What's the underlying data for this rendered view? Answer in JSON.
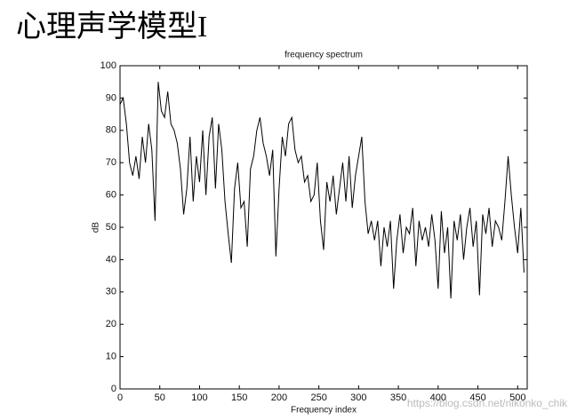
{
  "heading": "心理声学模型I",
  "watermark": "https://blog.csdn.net/nikonko_chik",
  "chart_data": {
    "type": "line",
    "title": "frequency spectrum",
    "x_label": "Frequency index",
    "y_label": "dB",
    "color": "#000000",
    "xlim": [
      0,
      512
    ],
    "ylim": [
      0,
      100
    ],
    "xticks": [
      0,
      50,
      100,
      150,
      200,
      250,
      300,
      350,
      400,
      450,
      500
    ],
    "yticks": [
      0,
      10,
      20,
      30,
      40,
      50,
      60,
      70,
      80,
      90,
      100
    ],
    "x": [
      0,
      4,
      8,
      12,
      16,
      20,
      24,
      28,
      32,
      36,
      40,
      44,
      48,
      52,
      56,
      60,
      64,
      68,
      72,
      76,
      80,
      84,
      88,
      92,
      96,
      100,
      104,
      108,
      112,
      116,
      120,
      124,
      128,
      132,
      136,
      140,
      144,
      148,
      152,
      156,
      160,
      164,
      168,
      172,
      176,
      180,
      184,
      188,
      192,
      196,
      200,
      204,
      208,
      212,
      216,
      220,
      224,
      228,
      232,
      236,
      240,
      244,
      248,
      252,
      256,
      260,
      264,
      268,
      272,
      276,
      280,
      284,
      288,
      292,
      296,
      300,
      304,
      308,
      312,
      316,
      320,
      324,
      328,
      332,
      336,
      340,
      344,
      348,
      352,
      356,
      360,
      364,
      368,
      372,
      376,
      380,
      384,
      388,
      392,
      396,
      400,
      404,
      408,
      412,
      416,
      420,
      424,
      428,
      432,
      436,
      440,
      444,
      448,
      452,
      456,
      460,
      464,
      468,
      472,
      476,
      480,
      484,
      488,
      492,
      496,
      500,
      504,
      508
    ],
    "values": [
      88,
      90,
      82,
      70,
      66,
      72,
      65,
      78,
      70,
      82,
      74,
      52,
      95,
      86,
      84,
      92,
      82,
      80,
      76,
      68,
      54,
      62,
      78,
      58,
      72,
      64,
      80,
      60,
      78,
      84,
      62,
      82,
      74,
      58,
      48,
      39,
      62,
      70,
      56,
      58,
      44,
      68,
      72,
      80,
      84,
      76,
      72,
      66,
      74,
      41,
      62,
      78,
      72,
      82,
      84,
      74,
      70,
      72,
      64,
      66,
      58,
      60,
      70,
      52,
      43,
      64,
      58,
      66,
      54,
      62,
      70,
      58,
      72,
      56,
      66,
      72,
      78,
      58,
      48,
      52,
      46,
      52,
      38,
      50,
      44,
      52,
      31,
      46,
      54,
      42,
      50,
      48,
      56,
      38,
      52,
      46,
      50,
      44,
      54,
      46,
      31,
      55,
      42,
      50,
      28,
      52,
      46,
      54,
      40,
      50,
      56,
      44,
      52,
      29,
      54,
      48,
      56,
      44,
      52,
      50,
      46,
      58,
      72,
      60,
      50,
      42,
      56,
      36
    ]
  }
}
